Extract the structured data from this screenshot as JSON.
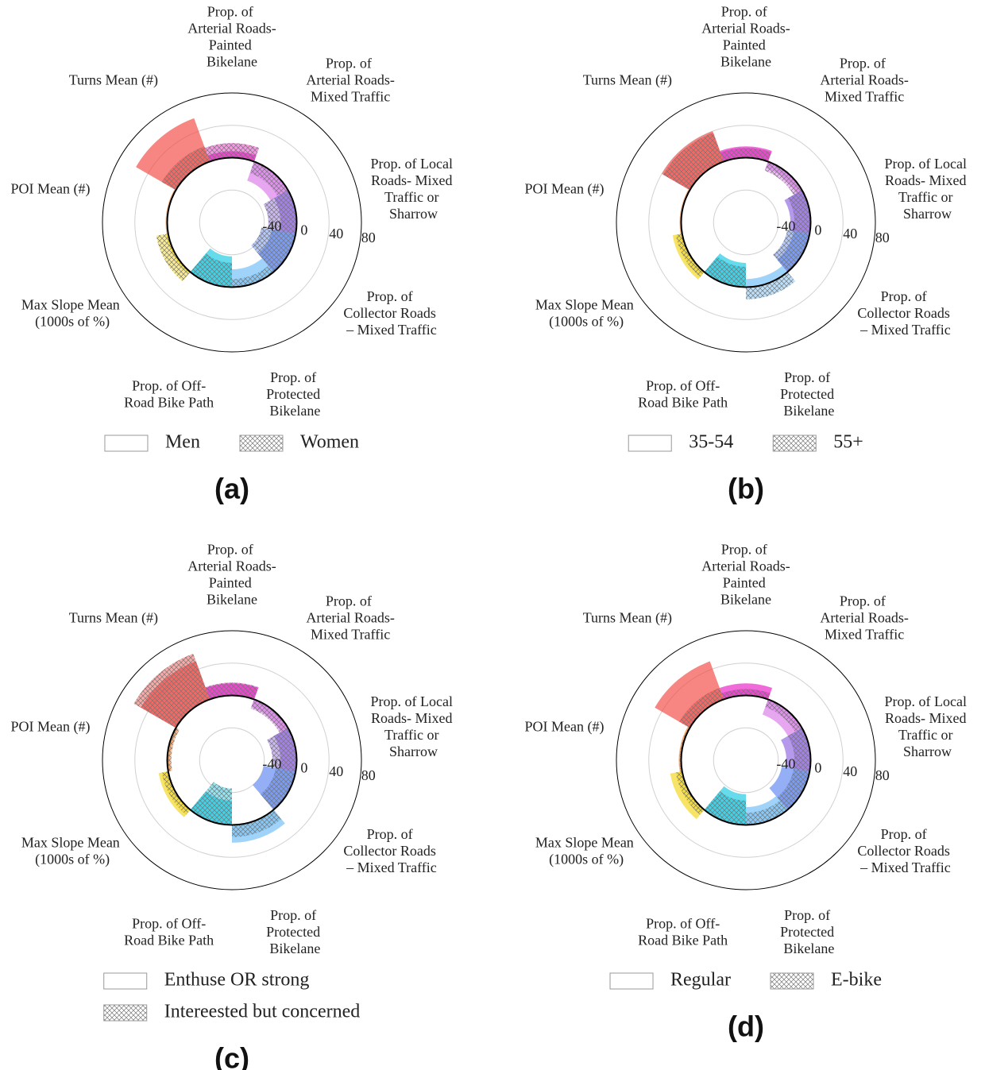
{
  "chart_data": [
    {
      "type": "polar_bar",
      "title": "(a)",
      "categories": [
        "Prop. of Arterial Roads-Painted Bikelane",
        "Prop. of Arterial Roads-Mixed Traffic",
        "Prop. of Local Roads- Mixed Traffic or Sharrow",
        "Prop. of Collector Roads – Mixed Traffic",
        "Prop. of Protected Bikelane",
        "Prop. of Off-Road Bike Path",
        "Max Slope Mean (1000s of %)",
        "POI Mean (#)",
        "Turns Mean (#)"
      ],
      "colors": [
        "#e81cc4",
        "#d977e8",
        "#8e63e0",
        "#5b84f0",
        "#6cbcf6",
        "#14c8e2",
        "#f2d414",
        "#f08a3c",
        "#f2443e"
      ],
      "series": [
        {
          "name": "Men",
          "values": [
            8,
            -25,
            -20,
            -30,
            -22,
            -38,
            3,
            2,
            57
          ]
        },
        {
          "name": "Women",
          "hatch": true,
          "values": [
            18,
            -15,
            -35,
            -43,
            -10,
            -30,
            15,
            1,
            20
          ]
        }
      ],
      "ylim": [
        -80,
        80
      ],
      "yticks": [
        -40,
        0,
        40,
        80
      ]
    },
    {
      "type": "polar_bar",
      "title": "(b)",
      "categories": [
        "Prop. of Arterial Roads-Painted Bikelane",
        "Prop. of Arterial Roads-Mixed Traffic",
        "Prop. of Local Roads- Mixed Traffic or Sharrow",
        "Prop. of Collector Roads – Mixed Traffic",
        "Prop. of Protected Bikelane",
        "Prop. of Off-Road Bike Path",
        "Max Slope Mean (1000s of %)",
        "POI Mean (#)",
        "Turns Mean (#)"
      ],
      "colors": [
        "#e81cc4",
        "#d977e8",
        "#8e63e0",
        "#5b84f0",
        "#6cbcf6",
        "#14c8e2",
        "#f2d414",
        "#f08a3c",
        "#f2443e"
      ],
      "series": [
        {
          "name": "35-54",
          "values": [
            14,
            -8,
            -25,
            -20,
            -10,
            -30,
            12,
            2,
            40
          ]
        },
        {
          "name": "55+",
          "hatch": true,
          "values": [
            12,
            -12,
            -20,
            -28,
            15,
            -25,
            8,
            1,
            38
          ]
        }
      ],
      "ylim": [
        -80,
        80
      ],
      "yticks": [
        -40,
        0,
        40,
        80
      ]
    },
    {
      "type": "polar_bar",
      "title": "(c)",
      "categories": [
        "Prop. of Arterial Roads-Painted Bikelane",
        "Prop. of Arterial Roads-Mixed Traffic",
        "Prop. of Local Roads- Mixed Traffic or Sharrow",
        "Prop. of Collector Roads – Mixed Traffic",
        "Prop. of Protected Bikelane",
        "Prop. of Off-Road Bike Path",
        "Max Slope Mean (1000s of %)",
        "POI Mean (#)",
        "Turns Mean (#)"
      ],
      "colors": [
        "#e81cc4",
        "#d977e8",
        "#8e63e0",
        "#5b84f0",
        "#6cbcf6",
        "#14c8e2",
        "#f2d414",
        "#f08a3c",
        "#f2443e"
      ],
      "series": [
        {
          "name": "Enthuse OR strong",
          "values": [
            15,
            -10,
            -20,
            -40,
            22,
            -30,
            12,
            -3,
            50
          ]
        },
        {
          "name": "Intereested but concerned",
          "hatch": true,
          "values": [
            16,
            -12,
            -30,
            -25,
            15,
            -45,
            8,
            -5,
            60
          ]
        }
      ],
      "ylim": [
        -80,
        80
      ],
      "yticks": [
        -40,
        0,
        40,
        80
      ]
    },
    {
      "type": "polar_bar",
      "title": "(d)",
      "categories": [
        "Prop. of Arterial Roads-Painted Bikelane",
        "Prop. of Arterial Roads-Mixed Traffic",
        "Prop. of Local Roads- Mixed Traffic or Sharrow",
        "Prop. of Collector Roads – Mixed Traffic",
        "Prop. of Protected Bikelane",
        "Prop. of Off-Road Bike Path",
        "Max Slope Mean (1000s of %)",
        "POI Mean (#)",
        "Turns Mean (#)"
      ],
      "colors": [
        "#e81cc4",
        "#d977e8",
        "#8e63e0",
        "#5b84f0",
        "#6cbcf6",
        "#14c8e2",
        "#f2d414",
        "#f08a3c",
        "#f2443e"
      ],
      "series": [
        {
          "name": "Regular",
          "values": [
            15,
            -20,
            -30,
            -35,
            -22,
            -38,
            15,
            3,
            50
          ]
        },
        {
          "name": "E-bike",
          "hatch": true,
          "values": [
            8,
            -10,
            -20,
            -20,
            -15,
            -30,
            8,
            2,
            15
          ]
        }
      ],
      "ylim": [
        -80,
        80
      ],
      "yticks": [
        -40,
        0,
        40,
        80
      ]
    }
  ]
}
